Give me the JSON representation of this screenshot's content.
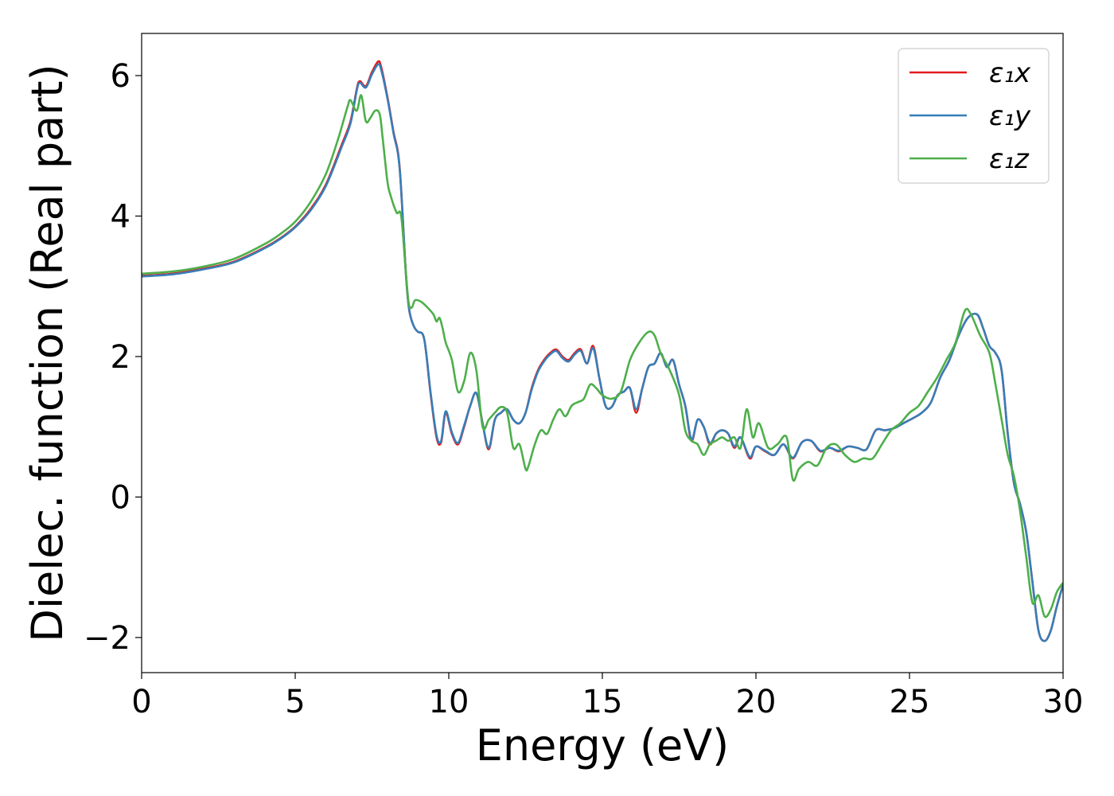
{
  "chart_data": {
    "type": "line",
    "title": "",
    "xlabel": "Energy (eV)",
    "ylabel": "Dielec. function (Real part)",
    "xlim": [
      0,
      30
    ],
    "ylim": [
      -2.5,
      6.6
    ],
    "xticks": [
      0,
      5,
      10,
      15,
      20,
      25,
      30
    ],
    "xtick_labels": [
      "0",
      "5",
      "10",
      "15",
      "20",
      "25",
      "30"
    ],
    "yticks": [
      -2,
      0,
      2,
      4,
      6
    ],
    "ytick_labels": [
      "−2",
      "0",
      "2",
      "4",
      "6"
    ],
    "grid": false,
    "legend": "top-right",
    "series": [
      {
        "name": "ε₁x",
        "color": "#e41a1c",
        "x": [
          0,
          1,
          2,
          3,
          4,
          4.5,
          5,
          5.5,
          6,
          6.5,
          6.8,
          7,
          7.1,
          7.3,
          7.5,
          7.7,
          7.8,
          8,
          8.2,
          8.4,
          8.6,
          8.7,
          8.8,
          8.9,
          9,
          9.2,
          9.4,
          9.6,
          9.75,
          9.9,
          10.1,
          10.3,
          10.5,
          10.7,
          10.9,
          11.1,
          11.3,
          11.5,
          11.7,
          11.9,
          12.1,
          12.3,
          12.5,
          12.7,
          12.9,
          13.1,
          13.3,
          13.5,
          13.7,
          13.9,
          14.1,
          14.3,
          14.5,
          14.7,
          14.9,
          15.1,
          15.3,
          15.5,
          15.7,
          15.9,
          16.1,
          16.3,
          16.5,
          16.7,
          16.9,
          17.1,
          17.3,
          17.5,
          17.7,
          17.9,
          18.1,
          18.3,
          18.5,
          18.7,
          18.9,
          19.1,
          19.3,
          19.5,
          19.8,
          20,
          20.3,
          20.6,
          20.9,
          21.2,
          21.5,
          21.8,
          22.1,
          22.4,
          22.7,
          23,
          23.3,
          23.6,
          23.9,
          24.2,
          24.5,
          24.8,
          25.1,
          25.4,
          25.7,
          26,
          26.3,
          26.6,
          26.9,
          27.2,
          27.4,
          27.6,
          27.8,
          28,
          28.2,
          28.4,
          28.6,
          28.8,
          29,
          29.2,
          29.4,
          29.6,
          29.8,
          30
        ],
        "y": [
          3.15,
          3.18,
          3.25,
          3.35,
          3.55,
          3.68,
          3.85,
          4.1,
          4.45,
          5.0,
          5.35,
          5.8,
          5.92,
          5.85,
          6.05,
          6.2,
          6.12,
          5.7,
          5.2,
          4.7,
          3.2,
          2.7,
          2.5,
          2.4,
          2.35,
          2.25,
          1.5,
          0.85,
          0.78,
          1.2,
          0.9,
          0.75,
          1.0,
          1.3,
          1.48,
          1.05,
          0.68,
          1.1,
          1.2,
          1.25,
          1.1,
          1.05,
          1.2,
          1.55,
          1.8,
          1.95,
          2.05,
          2.1,
          2.0,
          1.95,
          2.05,
          2.1,
          1.9,
          2.15,
          1.7,
          1.3,
          1.28,
          1.45,
          1.5,
          1.55,
          1.2,
          1.55,
          1.85,
          1.9,
          2.05,
          1.85,
          1.95,
          1.6,
          1.3,
          0.8,
          1.1,
          1.0,
          0.75,
          0.9,
          0.95,
          0.9,
          0.7,
          0.85,
          0.55,
          0.72,
          0.65,
          0.6,
          0.75,
          0.55,
          0.78,
          0.8,
          0.65,
          0.7,
          0.65,
          0.72,
          0.7,
          0.68,
          0.95,
          0.95,
          0.98,
          1.05,
          1.12,
          1.2,
          1.35,
          1.7,
          1.95,
          2.3,
          2.55,
          2.6,
          2.4,
          2.15,
          2.05,
          1.8,
          0.9,
          0.2,
          -0.1,
          -0.5,
          -1.2,
          -1.9,
          -2.05,
          -1.9,
          -1.55,
          -1.25
        ]
      },
      {
        "name": "ε₁y",
        "color": "#377eb8",
        "x": [
          0,
          1,
          2,
          3,
          4,
          4.5,
          5,
          5.5,
          6,
          6.5,
          6.8,
          7,
          7.1,
          7.3,
          7.5,
          7.7,
          7.8,
          8,
          8.2,
          8.4,
          8.6,
          8.7,
          8.8,
          8.9,
          9,
          9.2,
          9.4,
          9.6,
          9.75,
          9.9,
          10.1,
          10.3,
          10.5,
          10.7,
          10.9,
          11.1,
          11.3,
          11.5,
          11.7,
          11.9,
          12.1,
          12.3,
          12.5,
          12.7,
          12.9,
          13.1,
          13.3,
          13.5,
          13.7,
          13.9,
          14.1,
          14.3,
          14.5,
          14.7,
          14.9,
          15.1,
          15.3,
          15.5,
          15.7,
          15.9,
          16.1,
          16.3,
          16.5,
          16.7,
          16.9,
          17.1,
          17.3,
          17.5,
          17.7,
          17.9,
          18.1,
          18.3,
          18.5,
          18.7,
          18.9,
          19.1,
          19.3,
          19.5,
          19.8,
          20,
          20.3,
          20.6,
          20.9,
          21.2,
          21.5,
          21.8,
          22.1,
          22.4,
          22.7,
          23,
          23.3,
          23.6,
          23.9,
          24.2,
          24.5,
          24.8,
          25.1,
          25.4,
          25.7,
          26,
          26.3,
          26.6,
          26.9,
          27.2,
          27.4,
          27.6,
          27.8,
          28,
          28.2,
          28.4,
          28.6,
          28.8,
          29,
          29.2,
          29.4,
          29.6,
          29.8,
          30
        ],
        "y": [
          3.14,
          3.17,
          3.24,
          3.34,
          3.54,
          3.67,
          3.84,
          4.08,
          4.43,
          4.97,
          5.32,
          5.78,
          5.9,
          5.83,
          6.02,
          6.16,
          6.08,
          5.68,
          5.18,
          4.68,
          3.2,
          2.7,
          2.5,
          2.4,
          2.35,
          2.25,
          1.52,
          0.88,
          0.8,
          1.22,
          0.92,
          0.77,
          1.02,
          1.3,
          1.48,
          1.05,
          0.7,
          1.1,
          1.2,
          1.25,
          1.1,
          1.05,
          1.2,
          1.53,
          1.78,
          1.93,
          2.03,
          2.08,
          1.98,
          1.93,
          2.03,
          2.08,
          1.9,
          2.12,
          1.7,
          1.3,
          1.28,
          1.45,
          1.5,
          1.55,
          1.25,
          1.55,
          1.85,
          1.9,
          2.05,
          1.85,
          1.95,
          1.6,
          1.3,
          0.82,
          1.1,
          1.0,
          0.77,
          0.9,
          0.95,
          0.9,
          0.72,
          0.85,
          0.57,
          0.72,
          0.66,
          0.6,
          0.75,
          0.56,
          0.78,
          0.8,
          0.66,
          0.7,
          0.66,
          0.72,
          0.7,
          0.68,
          0.95,
          0.95,
          0.98,
          1.05,
          1.12,
          1.2,
          1.35,
          1.7,
          1.95,
          2.3,
          2.55,
          2.6,
          2.4,
          2.15,
          2.05,
          1.8,
          0.9,
          0.2,
          -0.1,
          -0.5,
          -1.2,
          -1.9,
          -2.05,
          -1.9,
          -1.55,
          -1.25
        ]
      },
      {
        "name": "ε₁z",
        "color": "#4daf4a",
        "x": [
          0,
          1,
          2,
          3,
          4,
          4.5,
          5,
          5.5,
          6,
          6.4,
          6.7,
          6.8,
          7,
          7.15,
          7.3,
          7.45,
          7.6,
          7.75,
          7.85,
          8,
          8.1,
          8.3,
          8.45,
          8.6,
          8.7,
          8.8,
          8.9,
          9.1,
          9.3,
          9.5,
          9.6,
          9.7,
          9.8,
          9.9,
          10.1,
          10.3,
          10.5,
          10.7,
          10.9,
          11.1,
          11.3,
          11.5,
          11.7,
          11.9,
          12.1,
          12.3,
          12.5,
          12.6,
          12.8,
          13,
          13.2,
          13.4,
          13.6,
          13.8,
          14,
          14.2,
          14.4,
          14.6,
          14.8,
          15,
          15.3,
          15.6,
          15.9,
          16.2,
          16.5,
          16.7,
          16.9,
          17.2,
          17.5,
          17.7,
          17.9,
          18.1,
          18.3,
          18.5,
          18.7,
          18.9,
          19.1,
          19.3,
          19.5,
          19.7,
          19.9,
          20.1,
          20.4,
          20.7,
          21,
          21.2,
          21.4,
          21.7,
          22,
          22.3,
          22.6,
          22.9,
          23.2,
          23.5,
          23.8,
          24.1,
          24.4,
          24.7,
          25,
          25.3,
          25.6,
          25.9,
          26.2,
          26.5,
          26.8,
          27,
          27.3,
          27.6,
          27.8,
          28,
          28.2,
          28.4,
          28.6,
          28.8,
          29,
          29.2,
          29.4,
          29.6,
          29.8,
          30
        ],
        "y": [
          3.18,
          3.21,
          3.28,
          3.39,
          3.6,
          3.74,
          3.92,
          4.2,
          4.6,
          5.1,
          5.55,
          5.65,
          5.5,
          5.72,
          5.35,
          5.4,
          5.5,
          5.45,
          5.1,
          4.5,
          4.3,
          4.05,
          4.0,
          3.2,
          2.75,
          2.7,
          2.8,
          2.78,
          2.7,
          2.6,
          2.5,
          2.55,
          2.4,
          2.2,
          1.95,
          1.5,
          1.65,
          2.05,
          1.8,
          1.0,
          1.1,
          1.2,
          1.28,
          1.2,
          0.7,
          0.75,
          0.4,
          0.45,
          0.75,
          0.95,
          0.9,
          1.1,
          1.25,
          1.15,
          1.3,
          1.35,
          1.4,
          1.6,
          1.55,
          1.45,
          1.4,
          1.5,
          1.95,
          2.2,
          2.35,
          2.3,
          2.05,
          1.8,
          1.45,
          0.95,
          0.8,
          0.75,
          0.6,
          0.75,
          0.8,
          0.85,
          0.8,
          0.85,
          0.7,
          1.25,
          0.85,
          1.05,
          0.7,
          0.75,
          0.85,
          0.25,
          0.4,
          0.5,
          0.45,
          0.7,
          0.75,
          0.6,
          0.5,
          0.55,
          0.55,
          0.75,
          0.95,
          1.05,
          1.2,
          1.3,
          1.5,
          1.7,
          1.95,
          2.2,
          2.65,
          2.6,
          2.3,
          2.05,
          1.6,
          1.1,
          0.6,
          0.3,
          -0.2,
          -0.85,
          -1.5,
          -1.4,
          -1.7,
          -1.6,
          -1.35,
          -1.22
        ]
      }
    ]
  }
}
